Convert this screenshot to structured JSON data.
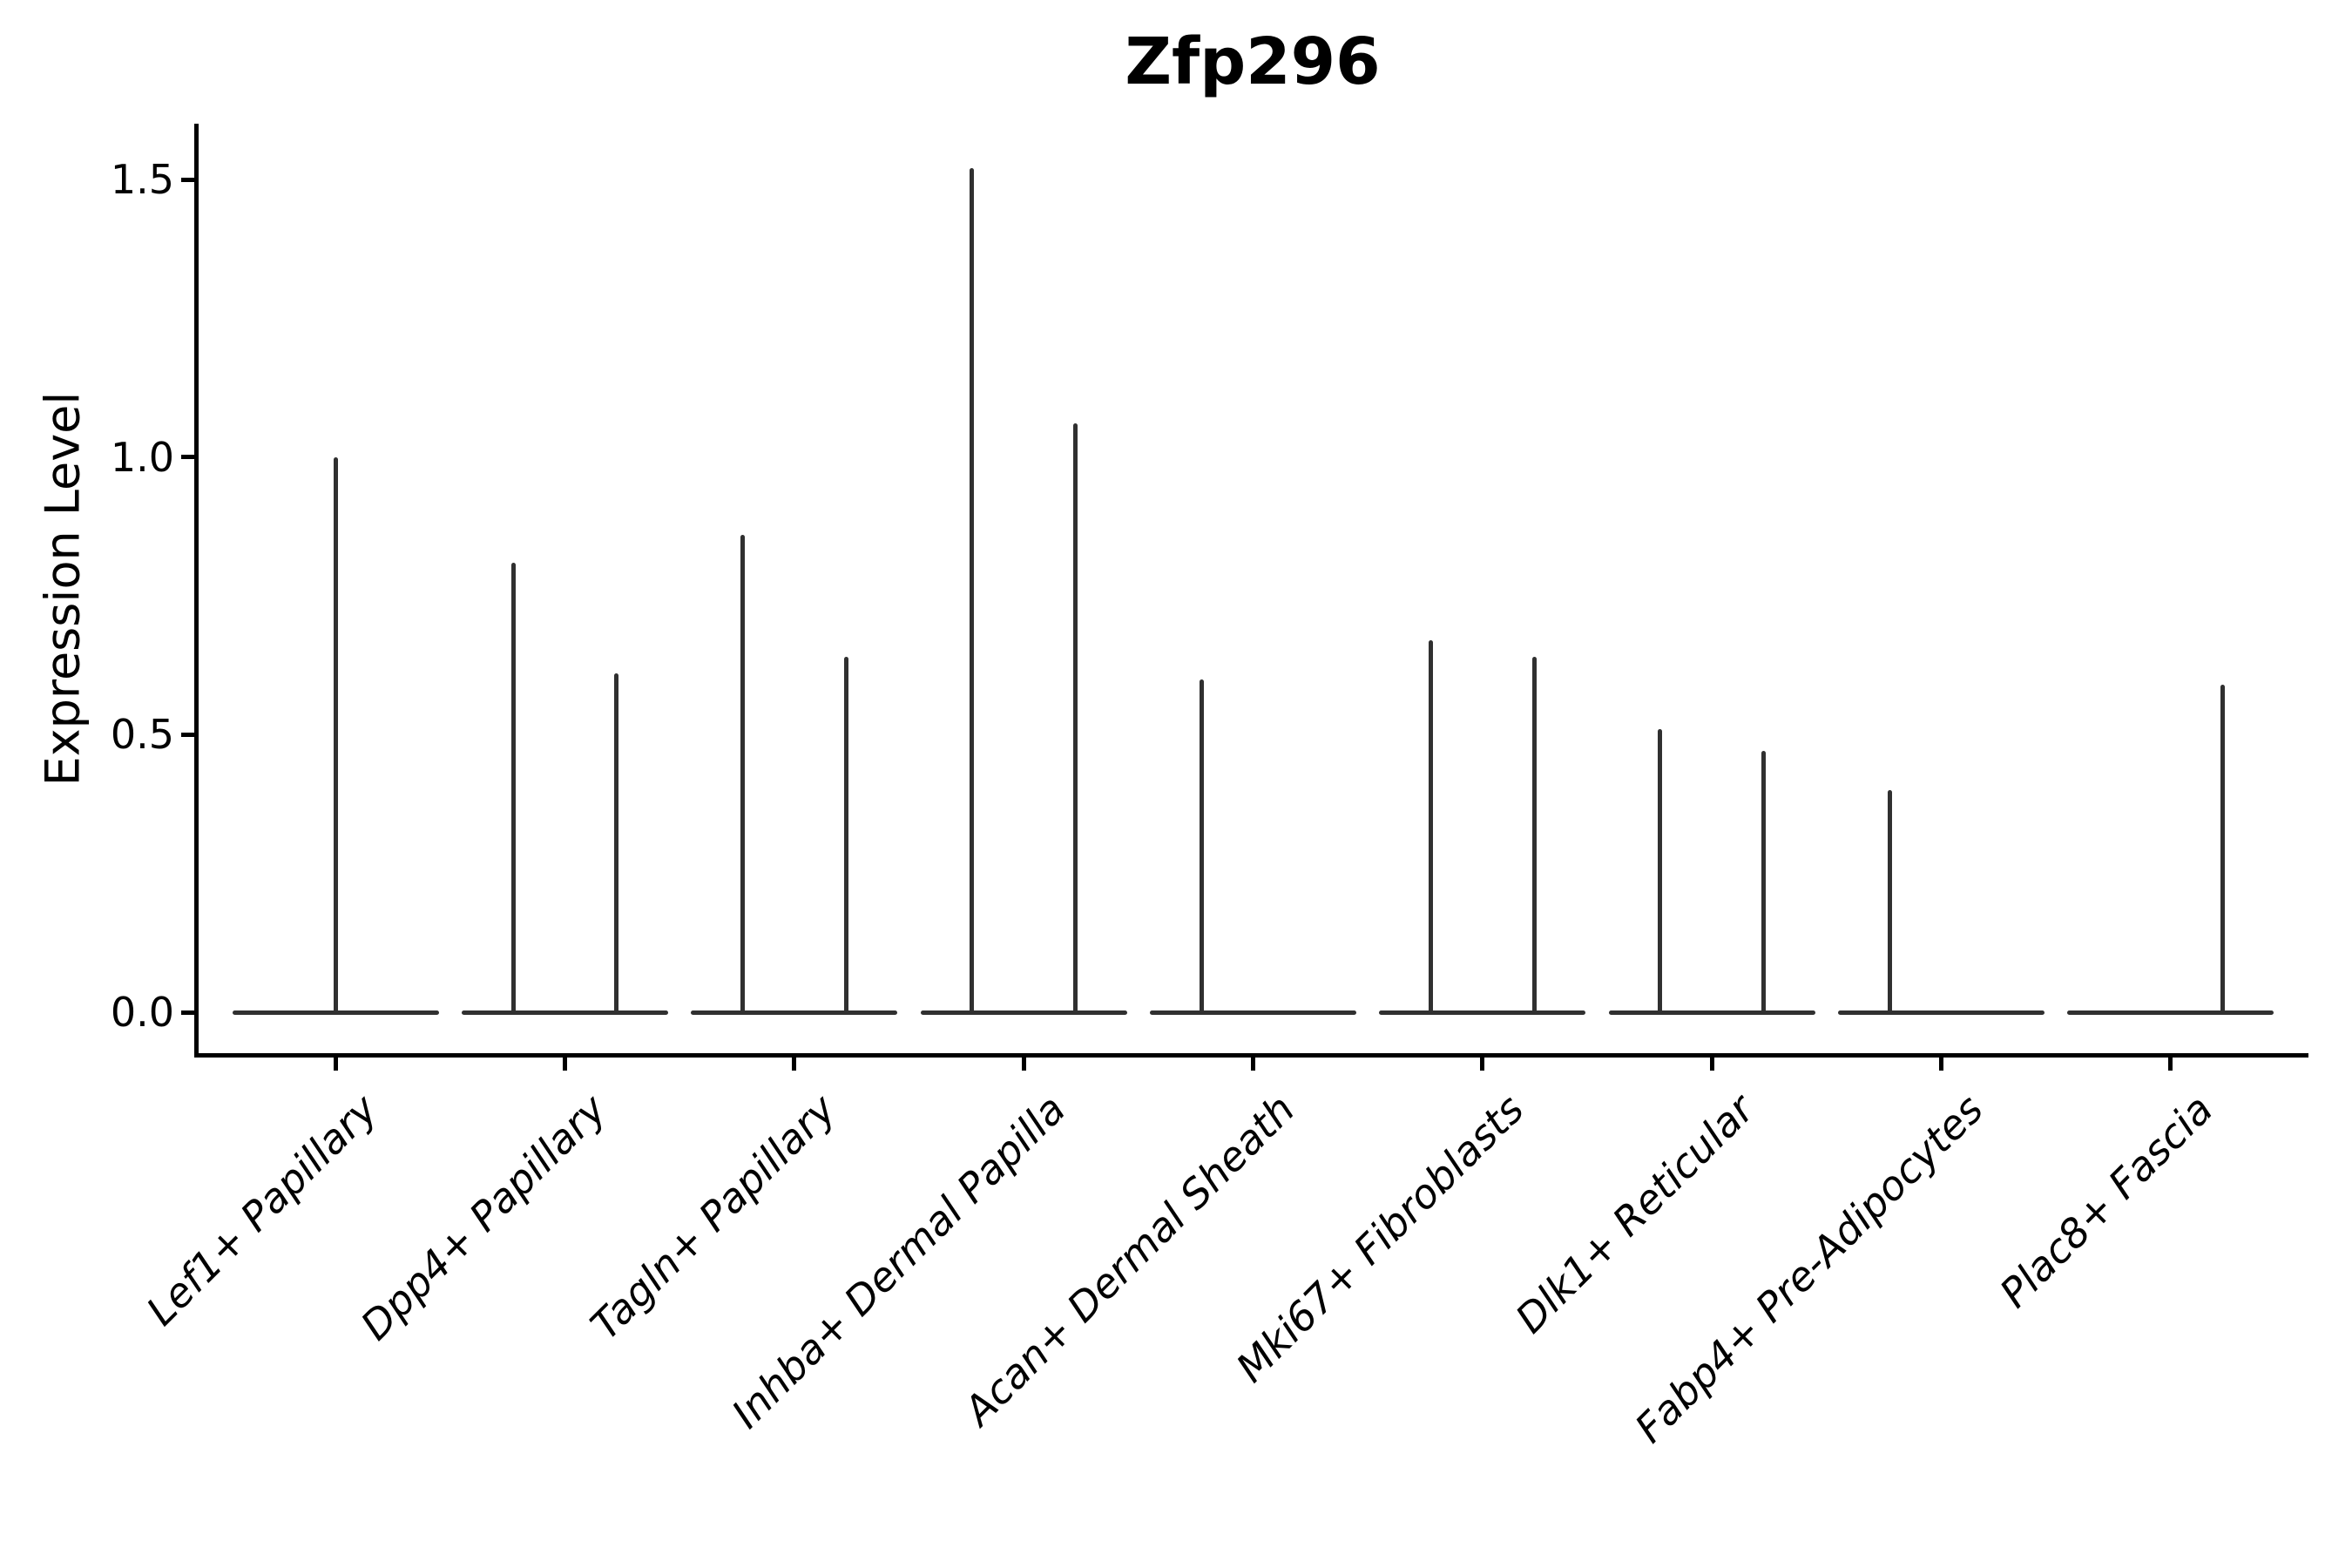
{
  "figure": {
    "title": "Zfp296",
    "ylabel": "Expression Level"
  },
  "chart_data": {
    "type": "violin",
    "title": "Zfp296",
    "xlabel": "",
    "ylabel": "Expression Level",
    "grid": false,
    "legend": "none",
    "ylim": [
      -0.074,
      1.6
    ],
    "ytick_labels": [
      "0.0",
      "0.5",
      "1.0",
      "1.5"
    ],
    "ytick_values": [
      0.0,
      0.5,
      1.0,
      1.5
    ],
    "categories": [
      "Lef1+ Papillary",
      "Dpp4+ Papillary",
      "Tagln+ Papillary",
      "Inhba+ Dermal Papilla",
      "Acan+ Dermal Sheath",
      "Mki67+ Fibroblasts",
      "Dlk1+ Reticular",
      "Fabp4+ Pre-Adipocytes",
      "Plac8+ Fascia"
    ],
    "description": "Seurat-style violin plot; each violin is a flat base at expression 0 with thin density spikes rising to the maximum expression of sparse positive cells. Offset is the horizontal dodge position of each spike within its category (fraction of category spacing).",
    "violins": [
      {
        "category": "Lef1+ Papillary",
        "spikes": [
          {
            "offset": 0.0,
            "max_expression": 1.0
          }
        ]
      },
      {
        "category": "Dpp4+ Papillary",
        "spikes": [
          {
            "offset": -0.225,
            "max_expression": 0.81
          },
          {
            "offset": 0.225,
            "max_expression": 0.61
          }
        ]
      },
      {
        "category": "Tagln+ Papillary",
        "spikes": [
          {
            "offset": -0.225,
            "max_expression": 0.86
          },
          {
            "offset": 0.225,
            "max_expression": 0.64
          }
        ]
      },
      {
        "category": "Inhba+ Dermal Papilla",
        "spikes": [
          {
            "offset": -0.225,
            "max_expression": 1.52
          },
          {
            "offset": 0.225,
            "max_expression": 1.06
          }
        ]
      },
      {
        "category": "Acan+ Dermal Sheath",
        "spikes": [
          {
            "offset": -0.225,
            "max_expression": 0.6
          }
        ]
      },
      {
        "category": "Mki67+ Fibroblasts",
        "spikes": [
          {
            "offset": -0.225,
            "max_expression": 0.67
          },
          {
            "offset": 0.225,
            "max_expression": 0.64
          }
        ]
      },
      {
        "category": "Dlk1+ Reticular",
        "spikes": [
          {
            "offset": -0.225,
            "max_expression": 0.51
          },
          {
            "offset": 0.225,
            "max_expression": 0.47
          }
        ]
      },
      {
        "category": "Fabp4+ Pre-Adipocytes",
        "spikes": [
          {
            "offset": -0.225,
            "max_expression": 0.4
          }
        ]
      },
      {
        "category": "Plac8+ Fascia",
        "spikes": [
          {
            "offset": 0.225,
            "max_expression": 0.59
          }
        ]
      }
    ],
    "colors": {
      "violin_stroke": "#303030",
      "axis": "#000000",
      "text": "#000000",
      "background": "#ffffff"
    }
  }
}
